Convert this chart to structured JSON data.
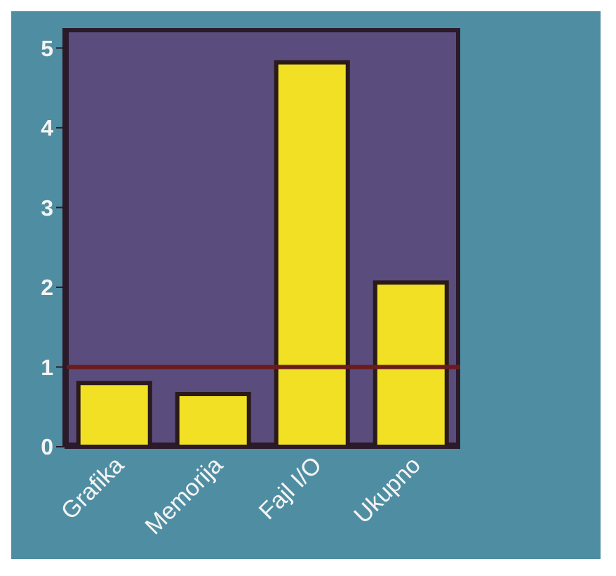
{
  "chart_data": {
    "type": "bar",
    "categories": [
      "Grafika",
      "Memorija",
      "Fajl I/O",
      "Ukupno"
    ],
    "values": [
      0.8,
      0.66,
      4.82,
      2.06
    ],
    "color": "#f2e024",
    "ylim": [
      0,
      5.25
    ],
    "yticks": [
      0,
      1,
      2,
      3,
      4,
      5
    ],
    "ref_lines": [
      {
        "axis": "y",
        "value": 1,
        "color": "#6a1c1c"
      }
    ]
  }
}
